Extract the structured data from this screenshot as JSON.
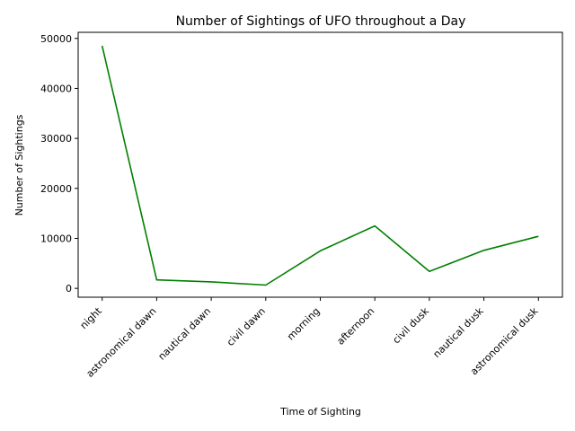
{
  "chart_data": {
    "type": "line",
    "title": "Number of Sightings of UFO throughout a Day",
    "xlabel": "Time of Sighting",
    "ylabel": "Number of Sightings",
    "categories": [
      "night",
      "astronomical dawn",
      "nautical dawn",
      "civil dawn",
      "morning",
      "afternoon",
      "civil dusk",
      "nautical dusk",
      "astronomical dusk"
    ],
    "series": [
      {
        "values": [
          48500,
          1700,
          1300,
          650,
          7500,
          12500,
          3400,
          7600,
          10400
        ]
      }
    ],
    "yticks": [
      0,
      10000,
      20000,
      30000,
      40000,
      50000
    ],
    "ylim": [
      -1770,
      51220
    ],
    "line_color": "#008000",
    "grid": false,
    "legend": "none"
  }
}
